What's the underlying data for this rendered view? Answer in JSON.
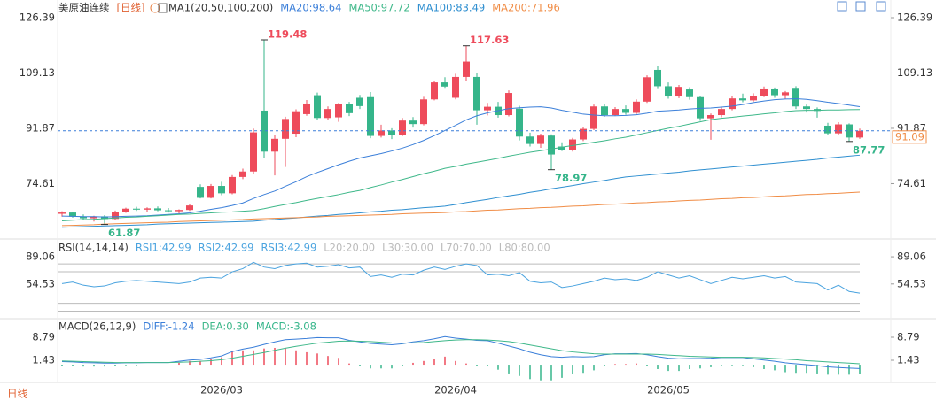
{
  "chart_data": [
    {
      "type": "candlestick",
      "title": "美原油连续",
      "period": "[日线]",
      "indicator": "MA1(20,50,100,200)",
      "up_color": "#ee4b5b",
      "down_color": "#35b58a",
      "ylim": [
        57.89,
        129.15
      ],
      "yticks": [
        126.39,
        109.13,
        91.87,
        74.61
      ],
      "categories": [
        null,
        null,
        null,
        null,
        null,
        null,
        null,
        null,
        null,
        null,
        null,
        null,
        null,
        null,
        null,
        "2026/03",
        null,
        null,
        null,
        null,
        null,
        null,
        null,
        null,
        null,
        null,
        null,
        null,
        null,
        null,
        null,
        null,
        null,
        null,
        null,
        null,
        null,
        "2026/04",
        null,
        null,
        null,
        null,
        null,
        null,
        null,
        null,
        null,
        null,
        null,
        null,
        null,
        null,
        null,
        null,
        null,
        null,
        null,
        "2026/05",
        null,
        null,
        null,
        null,
        null,
        null,
        null,
        null,
        null,
        null,
        null,
        null,
        null,
        null,
        null,
        null,
        null,
        null
      ],
      "candles": [
        [
          65.2,
          66.0,
          64.3,
          65.6
        ],
        [
          65.6,
          65.9,
          64.0,
          64.3
        ],
        [
          64.3,
          65.0,
          63.2,
          63.8
        ],
        [
          63.8,
          64.6,
          62.8,
          64.4
        ],
        [
          64.4,
          64.8,
          61.87,
          63.6
        ],
        [
          63.6,
          66.2,
          63.2,
          65.9
        ],
        [
          65.9,
          67.1,
          65.5,
          66.8
        ],
        [
          66.8,
          67.4,
          66.1,
          66.5
        ],
        [
          66.5,
          67.2,
          65.9,
          66.9
        ],
        [
          66.9,
          67.5,
          66.0,
          66.3
        ],
        [
          66.3,
          67.0,
          65.6,
          66.0
        ],
        [
          66.0,
          66.6,
          65.2,
          66.4
        ],
        [
          66.4,
          68.3,
          66.1,
          67.8
        ],
        [
          73.6,
          74.4,
          70.0,
          70.2
        ],
        [
          70.2,
          74.5,
          70.0,
          73.9
        ],
        [
          73.9,
          75.2,
          71.0,
          71.6
        ],
        [
          71.6,
          77.3,
          71.3,
          76.7
        ],
        [
          76.7,
          79.3,
          76.0,
          78.4
        ],
        [
          78.4,
          91.8,
          77.6,
          90.6
        ],
        [
          97.4,
          119.48,
          82.6,
          84.6
        ],
        [
          84.6,
          89.7,
          77.2,
          88.6
        ],
        [
          88.6,
          95.5,
          79.8,
          94.8
        ],
        [
          90.2,
          97.8,
          89.1,
          97.2
        ],
        [
          96.3,
          100.7,
          95.8,
          99.6
        ],
        [
          102.2,
          103.0,
          94.4,
          95.1
        ],
        [
          95.1,
          98.7,
          94.6,
          97.9
        ],
        [
          95.3,
          99.8,
          93.9,
          99.4
        ],
        [
          99.4,
          100.1,
          95.7,
          96.6
        ],
        [
          101.4,
          102.3,
          97.9,
          98.8
        ],
        [
          101.6,
          103.2,
          88.8,
          89.5
        ],
        [
          89.5,
          93.0,
          89.0,
          91.2
        ],
        [
          91.2,
          91.9,
          88.5,
          89.8
        ],
        [
          89.8,
          95.1,
          89.4,
          94.3
        ],
        [
          94.3,
          95.4,
          92.1,
          93.2
        ],
        [
          93.2,
          101.7,
          92.8,
          100.9
        ],
        [
          100.9,
          106.6,
          100.6,
          106.2
        ],
        [
          106.2,
          107.8,
          104.5,
          104.9
        ],
        [
          101.4,
          108.9,
          100.9,
          107.9
        ],
        [
          107.9,
          117.63,
          106.6,
          112.7
        ],
        [
          107.9,
          109.2,
          93.0,
          97.5
        ],
        [
          97.5,
          99.8,
          95.9,
          98.6
        ],
        [
          98.6,
          100.1,
          95.2,
          96.0
        ],
        [
          96.0,
          103.7,
          95.6,
          102.9
        ],
        [
          98.0,
          98.9,
          88.1,
          89.3
        ],
        [
          89.3,
          90.5,
          86.2,
          87.0
        ],
        [
          87.0,
          90.2,
          85.8,
          89.6
        ],
        [
          89.6,
          90.0,
          78.97,
          83.7
        ],
        [
          86.2,
          87.5,
          84.8,
          85.0
        ],
        [
          85.0,
          88.9,
          84.6,
          88.4
        ],
        [
          88.4,
          92.4,
          87.9,
          91.7
        ],
        [
          91.7,
          99.3,
          91.3,
          98.7
        ],
        [
          98.7,
          99.6,
          95.5,
          96.0
        ],
        [
          96.0,
          98.5,
          95.7,
          97.9
        ],
        [
          97.9,
          99.0,
          96.1,
          96.7
        ],
        [
          96.7,
          100.9,
          96.3,
          100.2
        ],
        [
          100.2,
          108.4,
          99.8,
          107.8
        ],
        [
          110.1,
          111.3,
          104.4,
          105.0
        ],
        [
          105.0,
          106.2,
          101.1,
          101.8
        ],
        [
          101.8,
          105.4,
          101.3,
          104.8
        ],
        [
          104.0,
          104.7,
          100.8,
          101.6
        ],
        [
          101.6,
          102.0,
          94.2,
          95.0
        ],
        [
          95.0,
          96.5,
          88.3,
          96.0
        ],
        [
          96.0,
          98.4,
          95.3,
          97.9
        ],
        [
          97.9,
          101.9,
          97.5,
          101.2
        ],
        [
          101.2,
          102.7,
          100.0,
          100.6
        ],
        [
          100.6,
          102.8,
          100.2,
          102.0
        ],
        [
          102.0,
          104.9,
          101.6,
          104.3
        ],
        [
          104.3,
          104.6,
          101.4,
          102.2
        ],
        [
          102.2,
          103.5,
          101.0,
          103.1
        ],
        [
          104.5,
          105.0,
          97.9,
          98.7
        ],
        [
          98.7,
          99.3,
          96.8,
          97.9
        ],
        [
          97.9,
          98.4,
          95.2,
          97.3
        ],
        [
          92.7,
          93.6,
          89.9,
          90.3
        ],
        [
          90.3,
          93.8,
          89.8,
          93.1
        ],
        [
          93.1,
          93.4,
          87.77,
          89.0
        ],
        [
          89.0,
          91.8,
          88.6,
          91.09
        ]
      ],
      "series": [
        {
          "name": "MA20:98.64",
          "color": "#3b7fd9",
          "values": [
            64.5,
            64.4,
            64.3,
            64.3,
            64.2,
            64.3,
            64.4,
            64.5,
            64.6,
            64.8,
            65.0,
            65.2,
            65.5,
            66.0,
            66.6,
            67.1,
            67.8,
            68.6,
            70.0,
            71.2,
            72.3,
            73.8,
            75.2,
            76.8,
            78.1,
            79.3,
            80.5,
            81.6,
            82.6,
            83.3,
            84.0,
            84.8,
            85.7,
            86.8,
            88.1,
            89.6,
            91.2,
            92.8,
            94.5,
            95.8,
            96.7,
            97.4,
            98.0,
            98.3,
            98.5,
            98.6,
            98.2,
            97.5,
            96.9,
            96.3,
            96.0,
            95.8,
            95.8,
            95.9,
            96.1,
            96.6,
            97.2,
            97.4,
            97.6,
            97.9,
            98.1,
            98.2,
            98.5,
            98.8,
            99.3,
            99.9,
            100.4,
            100.8,
            101.0,
            101.1,
            100.9,
            100.5,
            100.0,
            99.6,
            99.1,
            98.64
          ]
        },
        {
          "name": "MA50:97.72",
          "color": "#3fb88a",
          "values": [
            63.0,
            63.2,
            63.4,
            63.5,
            63.7,
            63.9,
            64.1,
            64.2,
            64.4,
            64.6,
            64.8,
            65.0,
            65.1,
            65.3,
            65.5,
            65.7,
            65.8,
            66.0,
            66.2,
            66.8,
            67.5,
            68.1,
            68.7,
            69.4,
            70.0,
            70.6,
            71.2,
            71.9,
            72.5,
            73.4,
            74.2,
            75.1,
            75.9,
            76.8,
            77.7,
            78.5,
            79.4,
            80.0,
            80.7,
            81.3,
            81.9,
            82.5,
            83.2,
            83.8,
            84.4,
            84.9,
            85.4,
            86.0,
            86.5,
            87.0,
            87.5,
            88.0,
            88.6,
            89.1,
            89.8,
            90.5,
            91.2,
            91.9,
            92.5,
            93.2,
            93.9,
            94.6,
            95.0,
            95.3,
            95.7,
            96.0,
            96.4,
            96.7,
            97.1,
            97.4,
            97.5,
            97.5,
            97.6,
            97.6,
            97.7,
            97.72
          ]
        },
        {
          "name": "MA100:83.49",
          "color": "#2f8fd0",
          "values": [
            61.0,
            61.1,
            61.2,
            61.3,
            61.4,
            61.5,
            61.6,
            61.7,
            61.8,
            62.0,
            62.1,
            62.2,
            62.3,
            62.4,
            62.5,
            62.6,
            62.7,
            62.8,
            62.9,
            63.2,
            63.4,
            63.7,
            63.9,
            64.2,
            64.5,
            64.7,
            65.0,
            65.2,
            65.5,
            65.8,
            66.0,
            66.3,
            66.5,
            66.8,
            67.1,
            67.3,
            67.6,
            68.1,
            68.7,
            69.2,
            69.7,
            70.3,
            70.8,
            71.3,
            71.9,
            72.4,
            73.0,
            73.5,
            74.0,
            74.6,
            75.1,
            75.6,
            76.2,
            76.7,
            77.0,
            77.3,
            77.6,
            77.9,
            78.2,
            78.6,
            78.9,
            79.2,
            79.5,
            79.8,
            80.1,
            80.4,
            80.7,
            81.0,
            81.3,
            81.6,
            81.9,
            82.2,
            82.6,
            82.9,
            83.2,
            83.49
          ]
        },
        {
          "name": "MA200:71.96",
          "color": "#f08c45",
          "values": [
            61.5,
            61.6,
            61.7,
            61.8,
            62.0,
            62.1,
            62.2,
            62.3,
            62.4,
            62.5,
            62.6,
            62.8,
            62.9,
            63.0,
            63.1,
            63.2,
            63.3,
            63.4,
            63.6,
            63.7,
            63.8,
            63.9,
            64.0,
            64.1,
            64.2,
            64.4,
            64.5,
            64.6,
            64.7,
            64.8,
            64.9,
            65.0,
            65.2,
            65.3,
            65.4,
            65.5,
            65.6,
            65.8,
            65.9,
            66.1,
            66.3,
            66.4,
            66.6,
            66.8,
            66.9,
            67.1,
            67.2,
            67.4,
            67.6,
            67.7,
            67.9,
            68.1,
            68.2,
            68.4,
            68.6,
            68.7,
            68.9,
            69.0,
            69.2,
            69.4,
            69.5,
            69.7,
            69.9,
            70.0,
            70.2,
            70.3,
            70.5,
            70.7,
            70.8,
            71.0,
            71.2,
            71.3,
            71.5,
            71.6,
            71.8,
            71.96
          ]
        }
      ]
    },
    {
      "type": "line",
      "title": "RSI(14,14,14)",
      "legend": [
        "RSI1:42.99",
        "RSI2:42.99",
        "RSI3:42.99"
      ],
      "color": "#4aa3df",
      "ylim": [
        15,
        97
      ],
      "yticks": [
        89.06,
        54.53
      ],
      "levels": [
        {
          "value": 20,
          "label": "L20:20.00"
        },
        {
          "value": 30,
          "label": "L30:30.00"
        },
        {
          "value": 70,
          "label": "L70:70.00"
        },
        {
          "value": 80,
          "label": "L80:80.00"
        }
      ],
      "values": [
        55,
        57,
        53,
        51,
        52,
        56,
        58,
        59,
        58,
        57,
        56,
        55,
        57,
        62,
        63,
        62,
        70,
        74,
        82,
        76,
        74,
        78,
        80,
        81,
        76,
        77,
        79,
        75,
        76,
        64,
        66,
        63,
        67,
        66,
        72,
        76,
        73,
        77,
        80,
        78,
        66,
        67,
        65,
        69,
        58,
        56,
        57,
        50,
        52,
        55,
        58,
        62,
        60,
        61,
        59,
        63,
        70,
        66,
        62,
        65,
        60,
        55,
        59,
        63,
        61,
        63,
        65,
        62,
        64,
        57,
        56,
        55,
        47,
        53,
        45,
        42.99
      ]
    },
    {
      "type": "macd",
      "title": "MACD(26,12,9)",
      "ylim": [
        -5.65,
        12.47
      ],
      "yticks": [
        8.79,
        1.43
      ],
      "series": [
        {
          "name": "DIFF:-1.24",
          "color": "#3b7fd9",
          "values": [
            1.0,
            0.9,
            0.7,
            0.6,
            0.5,
            0.5,
            0.6,
            0.6,
            0.7,
            0.7,
            0.7,
            1.1,
            1.5,
            1.7,
            2.2,
            2.8,
            4.2,
            5.0,
            5.6,
            6.5,
            7.3,
            8.0,
            8.2,
            8.4,
            8.7,
            8.6,
            8.6,
            7.8,
            7.3,
            6.8,
            6.6,
            6.4,
            6.7,
            7.3,
            7.7,
            8.3,
            9.0,
            8.5,
            8.2,
            7.8,
            7.7,
            6.9,
            6.0,
            5.1,
            4.0,
            3.2,
            2.6,
            2.4,
            2.6,
            2.5,
            2.6,
            3.2,
            3.5,
            3.5,
            3.6,
            3.2,
            2.6,
            2.1,
            1.9,
            2.0,
            2.0,
            2.1,
            2.3,
            2.3,
            2.3,
            1.9,
            1.5,
            1.1,
            0.6,
            0.3,
            0.0,
            -0.3,
            -0.7,
            -0.9,
            -1.1,
            -1.24
          ]
        },
        {
          "name": "DEA:0.30",
          "color": "#3fb88a",
          "values": [
            1.2,
            1.1,
            1.0,
            0.9,
            0.8,
            0.7,
            0.7,
            0.7,
            0.7,
            0.7,
            0.7,
            0.8,
            0.9,
            1.1,
            1.3,
            1.6,
            2.1,
            2.7,
            3.3,
            3.9,
            4.6,
            5.3,
            5.9,
            6.4,
            6.9,
            7.2,
            7.5,
            7.6,
            7.5,
            7.4,
            7.2,
            7.0,
            6.9,
            7.0,
            7.1,
            7.4,
            7.7,
            7.9,
            8.0,
            8.0,
            7.9,
            7.7,
            7.4,
            6.9,
            6.3,
            5.7,
            5.1,
            4.5,
            4.1,
            3.8,
            3.5,
            3.4,
            3.4,
            3.4,
            3.4,
            3.4,
            3.3,
            3.1,
            2.9,
            2.7,
            2.6,
            2.5,
            2.4,
            2.4,
            2.4,
            2.3,
            2.2,
            2.0,
            1.8,
            1.6,
            1.3,
            1.1,
            0.9,
            0.7,
            0.5,
            0.3
          ]
        }
      ],
      "histogram": {
        "name": "MACD:-3.08",
        "up_color": "#ee4b5b",
        "down_color": "#35b58a",
        "values": [
          -0.4,
          -0.4,
          -0.6,
          -0.6,
          -0.6,
          -0.4,
          -0.2,
          -0.2,
          0,
          0,
          0,
          0.6,
          1.2,
          1.2,
          1.8,
          2.4,
          4.2,
          4.6,
          4.6,
          5.2,
          5.4,
          5.4,
          4.6,
          4.0,
          3.6,
          2.8,
          2.2,
          0.4,
          -0.4,
          -1.2,
          -1.2,
          -1.2,
          -0.4,
          0.6,
          1.2,
          1.8,
          2.6,
          1.2,
          0.4,
          -0.4,
          -0.4,
          -1.6,
          -2.8,
          -3.6,
          -4.6,
          -5.0,
          -5.0,
          -4.2,
          -3.0,
          -2.6,
          -1.8,
          -0.4,
          0.2,
          0.2,
          0.4,
          -0.4,
          -1.4,
          -2.0,
          -2.0,
          -1.4,
          -1.2,
          -0.8,
          -0.2,
          -0.2,
          -0.2,
          -0.8,
          -1.4,
          -1.8,
          -2.4,
          -2.6,
          -2.6,
          -2.8,
          -3.2,
          -3.2,
          -3.2,
          -3.08
        ]
      }
    }
  ],
  "footer": "日线"
}
